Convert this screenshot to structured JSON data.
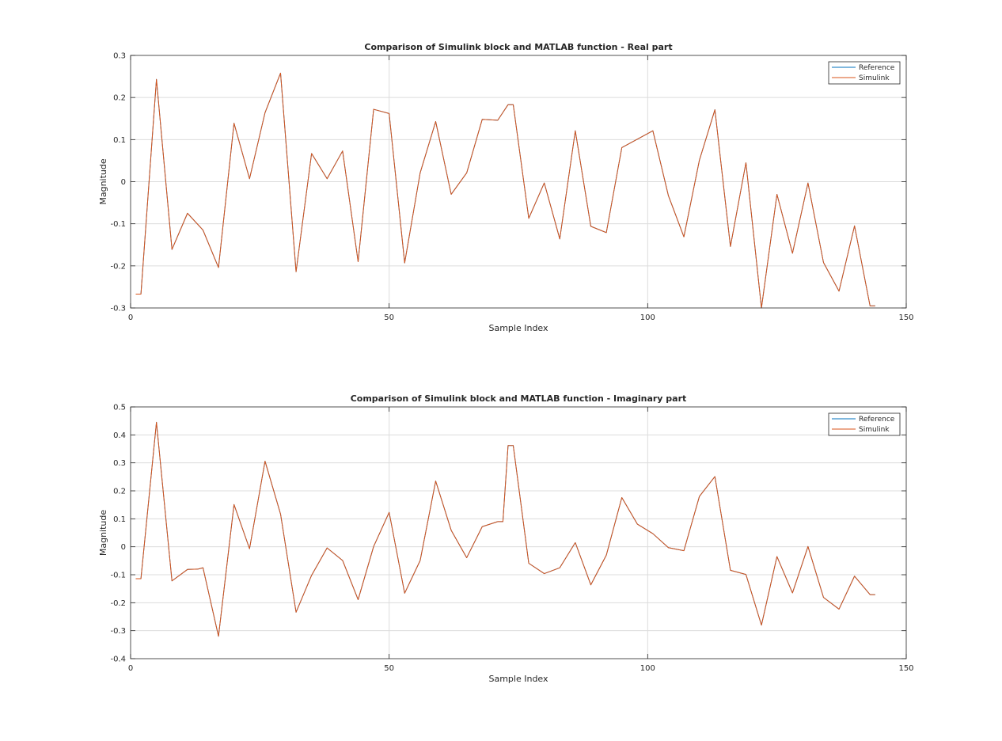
{
  "colors": {
    "reference": "#0072BD",
    "simulink": "#D95319",
    "grid": "#dcdcdc",
    "axis": "#262626",
    "background": "#ffffff"
  },
  "chart_data": [
    {
      "type": "line",
      "title": "Comparison of Simulink block and MATLAB function - Real part",
      "xlabel": "Sample Index",
      "ylabel": "Magnitude",
      "xlim": [
        0,
        150
      ],
      "ylim": [
        -0.3,
        0.3
      ],
      "xticks": [
        0,
        50,
        100,
        150
      ],
      "yticks": [
        -0.3,
        -0.2,
        -0.1,
        0,
        0.1,
        0.2,
        0.3
      ],
      "xtick_labels": [
        "0",
        "50",
        "100",
        "150"
      ],
      "ytick_labels": [
        "-0.3",
        "-0.2",
        "-0.1",
        "0",
        "0.1",
        "0.2",
        "0.3"
      ],
      "grid": true,
      "legend_position": "top-right",
      "x": [
        1,
        2,
        5,
        8,
        11,
        14,
        17,
        20,
        23,
        26,
        29,
        32,
        35,
        38,
        41,
        44,
        47,
        50,
        53,
        56,
        59,
        62,
        65,
        68,
        71,
        73,
        74,
        77,
        80,
        83,
        86,
        89,
        92,
        95,
        98,
        101,
        104,
        107,
        110,
        113,
        116,
        119,
        122,
        125,
        128,
        131,
        134,
        137,
        140,
        143,
        144
      ],
      "series": [
        {
          "name": "Reference",
          "values": [
            -0.267,
            -0.267,
            0.243,
            -0.161,
            -0.075,
            -0.115,
            -0.204,
            0.139,
            0.007,
            0.164,
            0.258,
            -0.214,
            0.067,
            0.007,
            0.073,
            -0.19,
            0.172,
            0.162,
            -0.193,
            0.021,
            0.143,
            -0.03,
            0.021,
            0.148,
            0.146,
            0.183,
            0.183,
            -0.087,
            -0.003,
            -0.136,
            0.121,
            -0.106,
            -0.121,
            0.081,
            0.101,
            0.121,
            -0.033,
            -0.131,
            0.051,
            0.171,
            -0.154,
            0.045,
            -0.3,
            -0.03,
            -0.17,
            -0.003,
            -0.192,
            -0.26,
            -0.105,
            -0.295,
            -0.295
          ]
        },
        {
          "name": "Simulink",
          "values": [
            -0.267,
            -0.267,
            0.243,
            -0.161,
            -0.075,
            -0.115,
            -0.204,
            0.139,
            0.007,
            0.164,
            0.258,
            -0.214,
            0.067,
            0.007,
            0.073,
            -0.19,
            0.172,
            0.162,
            -0.193,
            0.021,
            0.143,
            -0.03,
            0.021,
            0.148,
            0.146,
            0.183,
            0.183,
            -0.087,
            -0.003,
            -0.136,
            0.121,
            -0.106,
            -0.121,
            0.081,
            0.101,
            0.121,
            -0.033,
            -0.131,
            0.051,
            0.171,
            -0.154,
            0.045,
            -0.3,
            -0.03,
            -0.17,
            -0.003,
            -0.192,
            -0.26,
            -0.105,
            -0.295,
            -0.295
          ]
        }
      ]
    },
    {
      "type": "line",
      "title": "Comparison of Simulink block and MATLAB function - Imaginary part",
      "xlabel": "Sample Index",
      "ylabel": "Magnitude",
      "xlim": [
        0,
        150
      ],
      "ylim": [
        -0.4,
        0.5
      ],
      "xticks": [
        0,
        50,
        100,
        150
      ],
      "yticks": [
        -0.4,
        -0.3,
        -0.2,
        -0.1,
        0,
        0.1,
        0.2,
        0.3,
        0.4,
        0.5
      ],
      "xtick_labels": [
        "0",
        "50",
        "100",
        "150"
      ],
      "ytick_labels": [
        "-0.4",
        "-0.3",
        "-0.2",
        "-0.1",
        "0",
        "0.1",
        "0.2",
        "0.3",
        "0.4",
        "0.5"
      ],
      "grid": true,
      "legend_position": "top-right",
      "x": [
        1,
        2,
        5,
        8,
        11,
        13,
        14,
        17,
        20,
        23,
        26,
        29,
        32,
        35,
        38,
        41,
        44,
        47,
        50,
        53,
        56,
        59,
        62,
        65,
        68,
        71,
        72,
        73,
        74,
        77,
        80,
        83,
        86,
        89,
        92,
        95,
        98,
        101,
        104,
        107,
        110,
        113,
        116,
        119,
        122,
        125,
        128,
        131,
        134,
        137,
        140,
        143,
        144
      ],
      "series": [
        {
          "name": "Reference",
          "values": [
            -0.114,
            -0.114,
            0.445,
            -0.122,
            -0.081,
            -0.08,
            -0.075,
            -0.32,
            0.151,
            -0.007,
            0.306,
            0.117,
            -0.234,
            -0.102,
            -0.004,
            -0.049,
            -0.189,
            0.001,
            0.123,
            -0.166,
            -0.049,
            0.235,
            0.059,
            -0.039,
            0.072,
            0.09,
            0.09,
            0.362,
            0.362,
            -0.059,
            -0.096,
            -0.075,
            0.015,
            -0.136,
            -0.03,
            0.176,
            0.081,
            0.047,
            -0.003,
            -0.014,
            0.18,
            0.251,
            -0.084,
            -0.099,
            -0.28,
            -0.035,
            -0.165,
            0.001,
            -0.181,
            -0.223,
            -0.105,
            -0.171,
            -0.171
          ]
        },
        {
          "name": "Simulink",
          "values": [
            -0.114,
            -0.114,
            0.445,
            -0.122,
            -0.081,
            -0.08,
            -0.075,
            -0.32,
            0.151,
            -0.007,
            0.306,
            0.117,
            -0.234,
            -0.102,
            -0.004,
            -0.049,
            -0.189,
            0.001,
            0.123,
            -0.166,
            -0.049,
            0.235,
            0.059,
            -0.039,
            0.072,
            0.09,
            0.09,
            0.362,
            0.362,
            -0.059,
            -0.096,
            -0.075,
            0.015,
            -0.136,
            -0.03,
            0.176,
            0.081,
            0.047,
            -0.003,
            -0.014,
            0.18,
            0.251,
            -0.084,
            -0.099,
            -0.28,
            -0.035,
            -0.165,
            0.001,
            -0.181,
            -0.223,
            -0.105,
            -0.171,
            -0.171
          ]
        }
      ]
    }
  ]
}
